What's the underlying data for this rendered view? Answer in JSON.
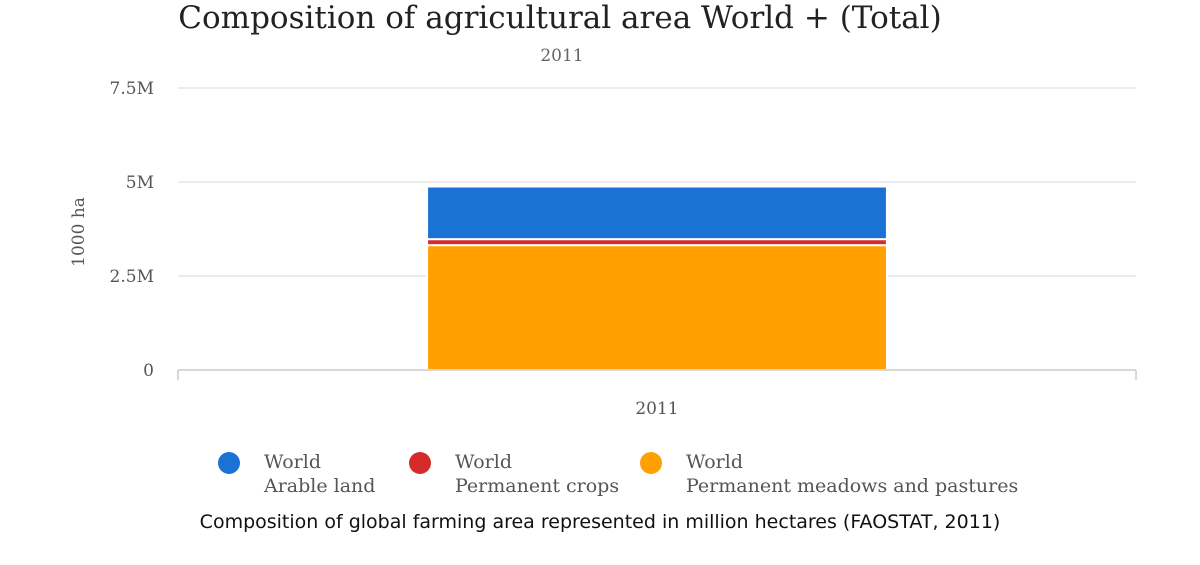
{
  "chart_data": {
    "type": "bar",
    "stacked": true,
    "title": "Composition of agricultural area World + (Total)",
    "subtitle": "2011",
    "xlabel": "",
    "ylabel": "1000 ha",
    "categories": [
      "2011"
    ],
    "ylim": [
      0,
      7500000
    ],
    "yticks": [
      0,
      2500000,
      5000000,
      7500000
    ],
    "ytick_labels": [
      "0",
      "2.5M",
      "5M",
      "7.5M"
    ],
    "grid": true,
    "legend_position": "bottom",
    "series": [
      {
        "name": "World\nPermanent meadows and pastures",
        "legend_line1": "World",
        "legend_line2": "Permanent meadows and pastures",
        "values": [
          3320000
        ],
        "color": "#ff9f00"
      },
      {
        "name": "World\nPermanent crops",
        "legend_line1": "World",
        "legend_line2": "Permanent crops",
        "values": [
          160000
        ],
        "color": "#d62b2b"
      },
      {
        "name": "World\nArable land",
        "legend_line1": "World",
        "legend_line2": "Arable land",
        "values": [
          1400000
        ],
        "color": "#1a73d4"
      }
    ],
    "legend_order": [
      2,
      1,
      0
    ]
  },
  "caption": "Composition of global farming area represented in million hectares (FAOSTAT, 2011)"
}
